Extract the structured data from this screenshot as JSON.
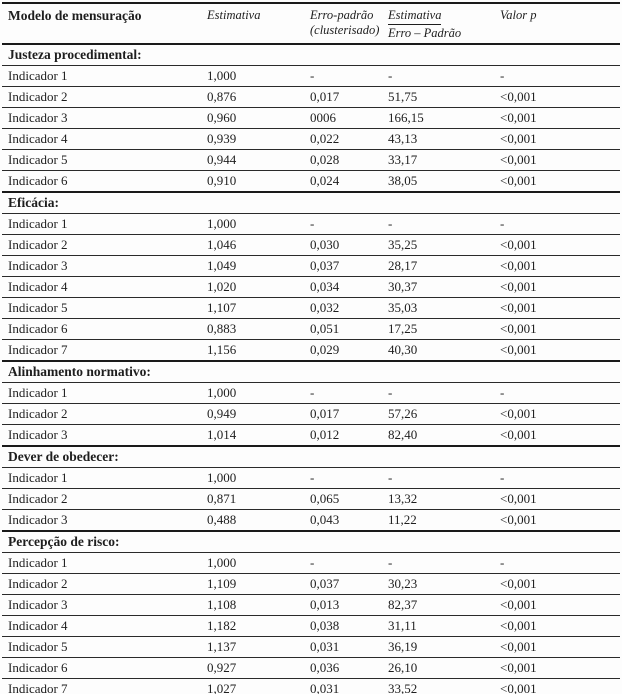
{
  "table": {
    "header": {
      "model": "Modelo de mensuração",
      "estimate": "Estimativa",
      "std_error_line1": "Erro-padrão",
      "std_error_line2": "(clusterisado)",
      "ratio_numerator": "Estimativa",
      "ratio_denominator": "Erro – Padrão",
      "p_value": "Valor p"
    },
    "sections": [
      {
        "title": "Justeza procedimental:",
        "rows": [
          {
            "label": "Indicador 1",
            "estimate": "1,000",
            "std_error": "-",
            "ratio": "-",
            "p": "-"
          },
          {
            "label": "Indicador 2",
            "estimate": "0,876",
            "std_error": "0,017",
            "ratio": "51,75",
            "p": "<0,001"
          },
          {
            "label": "Indicador 3",
            "estimate": "0,960",
            "std_error": "0006",
            "ratio": "166,15",
            "p": "<0,001"
          },
          {
            "label": "Indicador 4",
            "estimate": "0,939",
            "std_error": "0,022",
            "ratio": "43,13",
            "p": "<0,001"
          },
          {
            "label": "Indicador 5",
            "estimate": "0,944",
            "std_error": "0,028",
            "ratio": "33,17",
            "p": "<0,001"
          },
          {
            "label": "Indicador 6",
            "estimate": "0,910",
            "std_error": "0,024",
            "ratio": "38,05",
            "p": "<0,001"
          }
        ]
      },
      {
        "title": "Eficácia:",
        "rows": [
          {
            "label": "Indicador 1",
            "estimate": "1,000",
            "std_error": "-",
            "ratio": "-",
            "p": "-"
          },
          {
            "label": "Indicador 2",
            "estimate": "1,046",
            "std_error": "0,030",
            "ratio": "35,25",
            "p": "<0,001"
          },
          {
            "label": "Indicador 3",
            "estimate": "1,049",
            "std_error": "0,037",
            "ratio": "28,17",
            "p": "<0,001"
          },
          {
            "label": "Indicador 4",
            "estimate": "1,020",
            "std_error": "0,034",
            "ratio": "30,37",
            "p": "<0,001"
          },
          {
            "label": "Indicador 5",
            "estimate": "1,107",
            "std_error": "0,032",
            "ratio": "35,03",
            "p": "<0,001"
          },
          {
            "label": "Indicador 6",
            "estimate": "0,883",
            "std_error": "0,051",
            "ratio": "17,25",
            "p": "<0,001"
          },
          {
            "label": "Indicador 7",
            "estimate": "1,156",
            "std_error": "0,029",
            "ratio": "40,30",
            "p": "<0,001"
          }
        ]
      },
      {
        "title": "Alinhamento normativo:",
        "rows": [
          {
            "label": "Indicador 1",
            "estimate": "1,000",
            "std_error": "-",
            "ratio": "-",
            "p": "-"
          },
          {
            "label": "Indicador 2",
            "estimate": "0,949",
            "std_error": "0,017",
            "ratio": "57,26",
            "p": "<0,001"
          },
          {
            "label": "Indicador 3",
            "estimate": "1,014",
            "std_error": "0,012",
            "ratio": "82,40",
            "p": "<0,001"
          }
        ]
      },
      {
        "title": "Dever de obedecer:",
        "rows": [
          {
            "label": "Indicador 1",
            "estimate": "1,000",
            "std_error": "-",
            "ratio": "-",
            "p": "-"
          },
          {
            "label": "Indicador 2",
            "estimate": "0,871",
            "std_error": "0,065",
            "ratio": "13,32",
            "p": "<0,001"
          },
          {
            "label": "Indicador 3",
            "estimate": "0,488",
            "std_error": "0,043",
            "ratio": "11,22",
            "p": "<0,001"
          }
        ]
      },
      {
        "title": "Percepção de risco:",
        "rows": [
          {
            "label": "Indicador 1",
            "estimate": "1,000",
            "std_error": "-",
            "ratio": "-",
            "p": "-"
          },
          {
            "label": "Indicador 2",
            "estimate": "1,109",
            "std_error": "0,037",
            "ratio": "30,23",
            "p": "<0,001"
          },
          {
            "label": "Indicador 3",
            "estimate": "1,108",
            "std_error": "0,013",
            "ratio": "82,37",
            "p": "<0,001"
          },
          {
            "label": "Indicador 4",
            "estimate": "1,182",
            "std_error": "0,038",
            "ratio": "31,11",
            "p": "<0,001"
          },
          {
            "label": "Indicador 5",
            "estimate": "1,137",
            "std_error": "0,031",
            "ratio": "36,19",
            "p": "<0,001"
          },
          {
            "label": "Indicador 6",
            "estimate": "0,927",
            "std_error": "0,036",
            "ratio": "26,10",
            "p": "<0,001"
          },
          {
            "label": "Indicador 7",
            "estimate": "1,027",
            "std_error": "0,031",
            "ratio": "33,52",
            "p": "<0,001"
          }
        ]
      }
    ]
  }
}
